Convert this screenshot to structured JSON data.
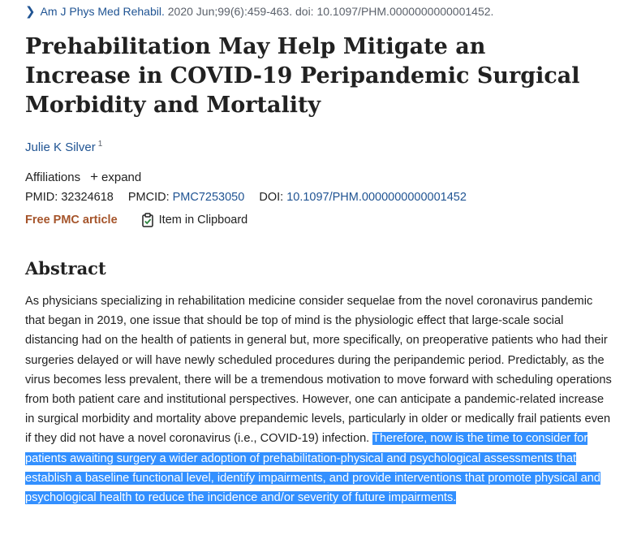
{
  "citation": {
    "journal": "Am J Phys Med Rehabil.",
    "rest": " 2020 Jun;99(6):459-463. doi: 10.1097/PHM.0000000000001452."
  },
  "title": "Prehabilitation May Help Mitigate an Increase in COVID-19 Peripandemic Surgical Morbidity and Mortality",
  "author": {
    "name": "Julie K Silver",
    "affiliation_ref": "1"
  },
  "affiliations": {
    "label": "Affiliations",
    "expand_label": "expand"
  },
  "ids": {
    "pmid_label": "PMID:",
    "pmid": "32324618",
    "pmcid_label": "PMCID:",
    "pmcid": "PMC7253050",
    "doi_label": "DOI:",
    "doi": "10.1097/PHM.0000000000001452"
  },
  "free_pmc": "Free PMC article",
  "clipboard": "Item in Clipboard",
  "abstract": {
    "heading": "Abstract",
    "text_plain": "As physicians specializing in rehabilitation medicine consider sequelae from the novel coronavirus pandemic that began in 2019, one issue that should be top of mind is the physiologic effect that large-scale social distancing had on the health of patients in general but, more specifically, on preoperative patients who had their surgeries delayed or will have newly scheduled procedures during the peripandemic period. Predictably, as the virus becomes less prevalent, there will be a tremendous motivation to move forward with scheduling operations from both patient care and institutional perspectives. However, one can anticipate a pandemic-related increase in surgical morbidity and mortality above prepandemic levels, particularly in older or medically frail patients even if they did not have a novel coronavirus (i.e., COVID-19) infection. ",
    "text_highlighted": "Therefore, now is the time to consider for patients awaiting surgery a wider adoption of prehabilitation-physical and psychological assessments that establish a baseline functional level, identify impairments, and provide interventions that promote physical and psychological health to reduce the incidence and/or severity of future impairments."
  },
  "colors": {
    "link": "#205493",
    "free_pmc": "#a5542a",
    "selection": "#3390ff"
  }
}
